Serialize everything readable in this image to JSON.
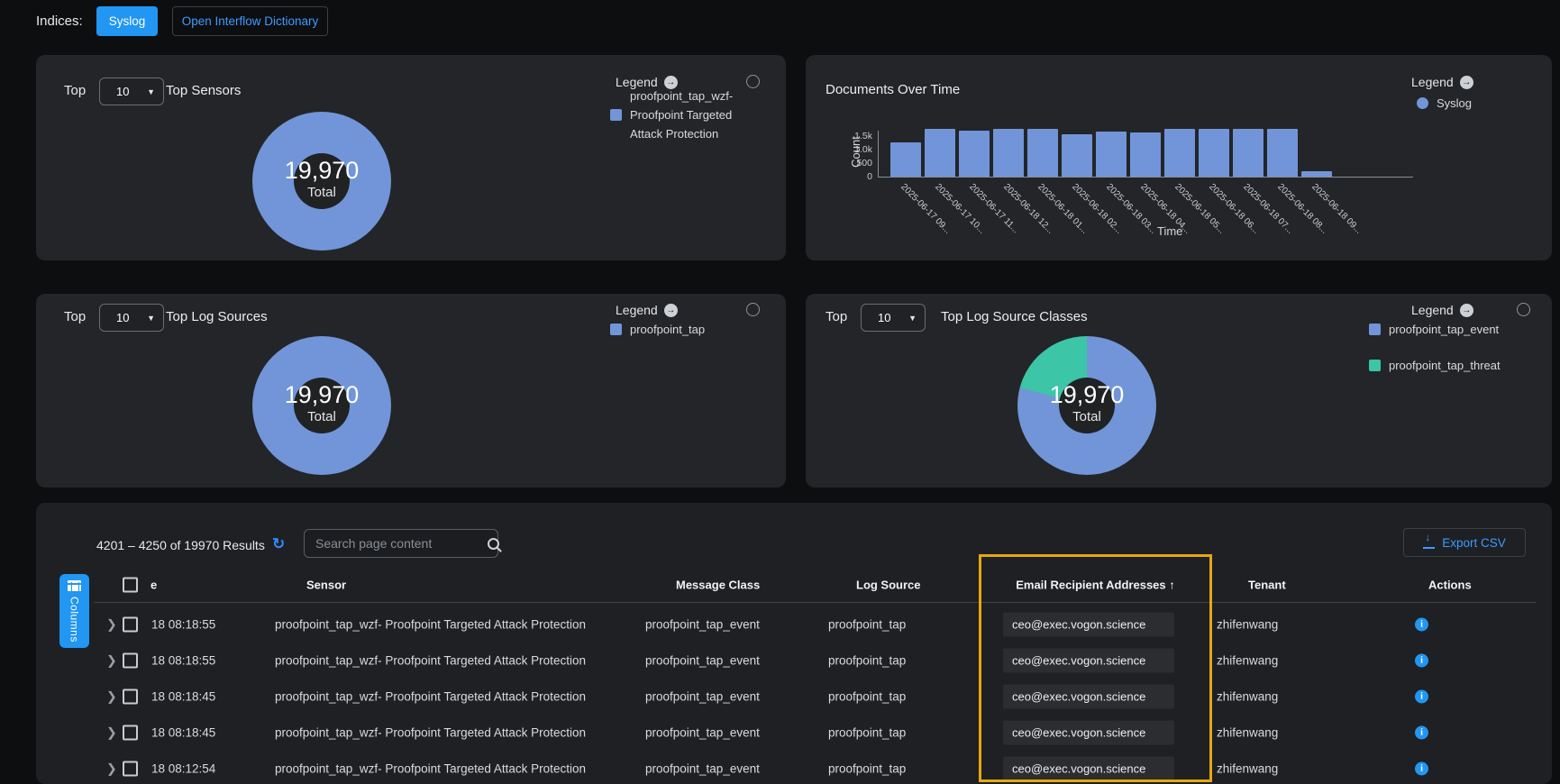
{
  "topbar": {
    "indices_label": "Indices:",
    "syslog_button": "Syslog",
    "dictionary_button": "Open Interflow Dictionary"
  },
  "colors": {
    "accent_blue": "#2196f3",
    "link_blue": "#3d9bff",
    "series_blue": "#7195d8",
    "series_teal": "#3cc5a7",
    "highlight_yellow": "#e7a711",
    "panel_bg": "#232528",
    "page_bg": "#0d0e10"
  },
  "panels": {
    "top_sensors": {
      "top_label": "Top",
      "top_value": "10",
      "title": "Top Sensors",
      "legend_label": "Legend",
      "legend_items": [
        {
          "label": "proofpoint_tap_wzf- Proofpoint Targeted Attack Protection",
          "color": "#7195d8"
        }
      ],
      "total_value": "19,970",
      "total_label": "Total"
    },
    "documents_over_time": {
      "title": "Documents Over Time",
      "ylabel": "Count",
      "xlabel": "Time",
      "legend_label": "Legend",
      "legend_items": [
        {
          "label": "Syslog",
          "color": "#7195d8"
        }
      ],
      "yticks": [
        "1.5k",
        "1.0k",
        "500",
        "0"
      ]
    },
    "top_log_sources": {
      "top_label": "Top",
      "top_value": "10",
      "title": "Top Log Sources",
      "legend_label": "Legend",
      "legend_items": [
        {
          "label": "proofpoint_tap",
          "color": "#7195d8"
        }
      ],
      "total_value": "19,970",
      "total_label": "Total"
    },
    "top_log_source_classes": {
      "top_label": "Top",
      "top_value": "10",
      "title": "Top Log Source Classes",
      "legend_label": "Legend",
      "legend_items": [
        {
          "label": "proofpoint_tap_event",
          "color": "#7195d8"
        },
        {
          "label": "proofpoint_tap_threat",
          "color": "#3cc5a7"
        }
      ],
      "total_value": "19,970",
      "total_label": "Total"
    }
  },
  "chart_data": [
    {
      "type": "bar",
      "title": "Documents Over Time",
      "xlabel": "Time",
      "ylabel": "Count",
      "legend": [
        "Syslog"
      ],
      "legend_position": "top-right",
      "color": "#7195d8",
      "ylim": [
        0,
        1800
      ],
      "yticks": [
        "1.5k",
        "1.0k",
        "500",
        "0"
      ],
      "categories": [
        "2025-06-17 09...",
        "2025-06-17 10...",
        "2025-06-17 11...",
        "2025-06-18 12...",
        "2025-06-18 01...",
        "2025-06-18 02...",
        "2025-06-18 03...",
        "2025-06-18 04...",
        "2025-06-18 05...",
        "2025-06-18 06...",
        "2025-06-18 07...",
        "2025-06-18 08...",
        "2025-06-18 09..."
      ],
      "values": [
        1250,
        1750,
        1700,
        1750,
        1750,
        1580,
        1650,
        1640,
        1750,
        1750,
        1750,
        1750,
        190
      ]
    },
    {
      "type": "pie",
      "title": "Top Sensors",
      "labels": [
        "proofpoint_tap_wzf- Proofpoint Targeted Attack Protection"
      ],
      "values": [
        19970
      ],
      "colors": [
        "#7195d8"
      ],
      "center_text": "19,970",
      "center_label": "Total"
    },
    {
      "type": "pie",
      "title": "Top Log Sources",
      "labels": [
        "proofpoint_tap"
      ],
      "values": [
        19970
      ],
      "colors": [
        "#7195d8"
      ],
      "center_text": "19,970",
      "center_label": "Total"
    },
    {
      "type": "pie",
      "title": "Top Log Source Classes",
      "labels": [
        "proofpoint_tap_event",
        "proofpoint_tap_threat"
      ],
      "values": [
        15780,
        4190
      ],
      "colors": [
        "#7195d8",
        "#3cc5a7"
      ],
      "center_text": "19,970",
      "center_label": "Total"
    }
  ],
  "table": {
    "results_text": "4201 – 4250 of 19970 Results",
    "search_placeholder": "Search page content",
    "export_label": "Export CSV",
    "columns_label": "Columns",
    "headers": {
      "time": "e",
      "sensor": "Sensor",
      "message_class": "Message Class",
      "log_source": "Log Source",
      "email": "Email Recipient Addresses",
      "email_sort": "↑",
      "tenant": "Tenant",
      "actions": "Actions"
    },
    "rows": [
      {
        "time": "18 08:18:55",
        "sensor": "proofpoint_tap_wzf- Proofpoint Targeted Attack Protection",
        "message_class": "proofpoint_tap_event",
        "log_source": "proofpoint_tap",
        "email": "ceo@exec.vogon.science",
        "tenant": "zhifenwang"
      },
      {
        "time": "18 08:18:55",
        "sensor": "proofpoint_tap_wzf- Proofpoint Targeted Attack Protection",
        "message_class": "proofpoint_tap_event",
        "log_source": "proofpoint_tap",
        "email": "ceo@exec.vogon.science",
        "tenant": "zhifenwang"
      },
      {
        "time": "18 08:18:45",
        "sensor": "proofpoint_tap_wzf- Proofpoint Targeted Attack Protection",
        "message_class": "proofpoint_tap_event",
        "log_source": "proofpoint_tap",
        "email": "ceo@exec.vogon.science",
        "tenant": "zhifenwang"
      },
      {
        "time": "18 08:18:45",
        "sensor": "proofpoint_tap_wzf- Proofpoint Targeted Attack Protection",
        "message_class": "proofpoint_tap_event",
        "log_source": "proofpoint_tap",
        "email": "ceo@exec.vogon.science",
        "tenant": "zhifenwang"
      },
      {
        "time": "18 08:12:54",
        "sensor": "proofpoint_tap_wzf- Proofpoint Targeted Attack Protection",
        "message_class": "proofpoint_tap_event",
        "log_source": "proofpoint_tap",
        "email": "ceo@exec.vogon.science",
        "tenant": "zhifenwang"
      }
    ]
  }
}
